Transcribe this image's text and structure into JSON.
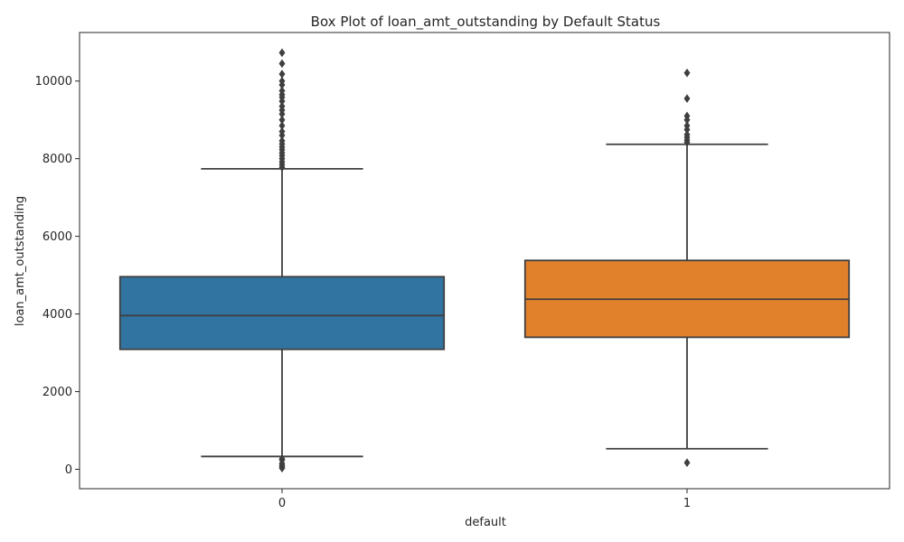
{
  "chart_data": {
    "type": "box",
    "title": "Box Plot of loan_amt_outstanding by Default Status",
    "xlabel": "default",
    "ylabel": "loan_amt_outstanding",
    "categories": [
      "0",
      "1"
    ],
    "ylim": [
      -500,
      11250
    ],
    "yticks": [
      0,
      2000,
      4000,
      6000,
      8000,
      10000
    ],
    "grid": false,
    "legend": "none",
    "series": [
      {
        "category": "0",
        "color": "#3274a1",
        "whisker_low": 330,
        "q1": 3090,
        "median": 3960,
        "q3": 4960,
        "whisker_high": 7740,
        "outliers": [
          30,
          60,
          100,
          150,
          240,
          270,
          7780,
          7850,
          7920,
          8000,
          8080,
          8150,
          8230,
          8300,
          8380,
          8460,
          8600,
          8700,
          8850,
          9000,
          9150,
          9250,
          9350,
          9480,
          9580,
          9650,
          9750,
          9900,
          10000,
          10180,
          10450,
          10730
        ]
      },
      {
        "category": "1",
        "color": "#e1812c",
        "whisker_low": 530,
        "q1": 3400,
        "median": 4380,
        "q3": 5380,
        "whisker_high": 8370,
        "outliers": [
          170,
          8420,
          8480,
          8550,
          8620,
          8750,
          8850,
          9000,
          9100,
          9550,
          10210
        ]
      }
    ]
  }
}
